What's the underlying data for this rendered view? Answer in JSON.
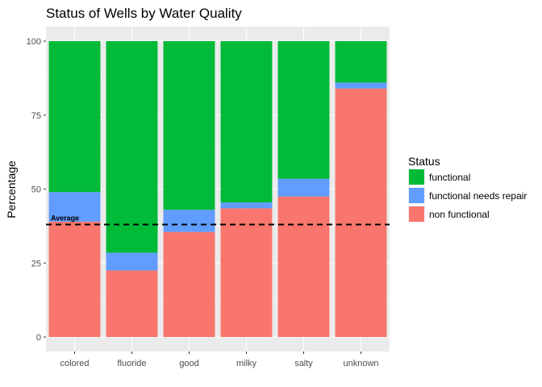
{
  "chart_data": {
    "type": "bar",
    "stacked": true,
    "title": "Status of Wells by Water Quality",
    "xlabel": "",
    "ylabel": "Percentage",
    "ylim": [
      0,
      100
    ],
    "yticks": [
      0,
      25,
      50,
      75,
      100
    ],
    "grid": true,
    "categories": [
      "colored",
      "fluoride",
      "good",
      "milky",
      "salty",
      "unknown"
    ],
    "series": [
      {
        "name": "non functional",
        "color": "#F8766D",
        "values": [
          39.0,
          22.5,
          35.5,
          43.5,
          47.5,
          84.0
        ]
      },
      {
        "name": "functional needs repair",
        "color": "#619CFF",
        "values": [
          10.0,
          6.0,
          7.5,
          2.0,
          6.0,
          2.0
        ]
      },
      {
        "name": "functional",
        "color": "#00BA38",
        "values": [
          51.0,
          71.5,
          57.0,
          54.5,
          46.5,
          14.0
        ]
      }
    ],
    "legend": {
      "title": "Status",
      "position": "right",
      "entries": [
        "functional",
        "functional needs repair",
        "non functional"
      ]
    },
    "reference_line": {
      "label": "Average",
      "value": 38,
      "style": "dashed"
    }
  }
}
